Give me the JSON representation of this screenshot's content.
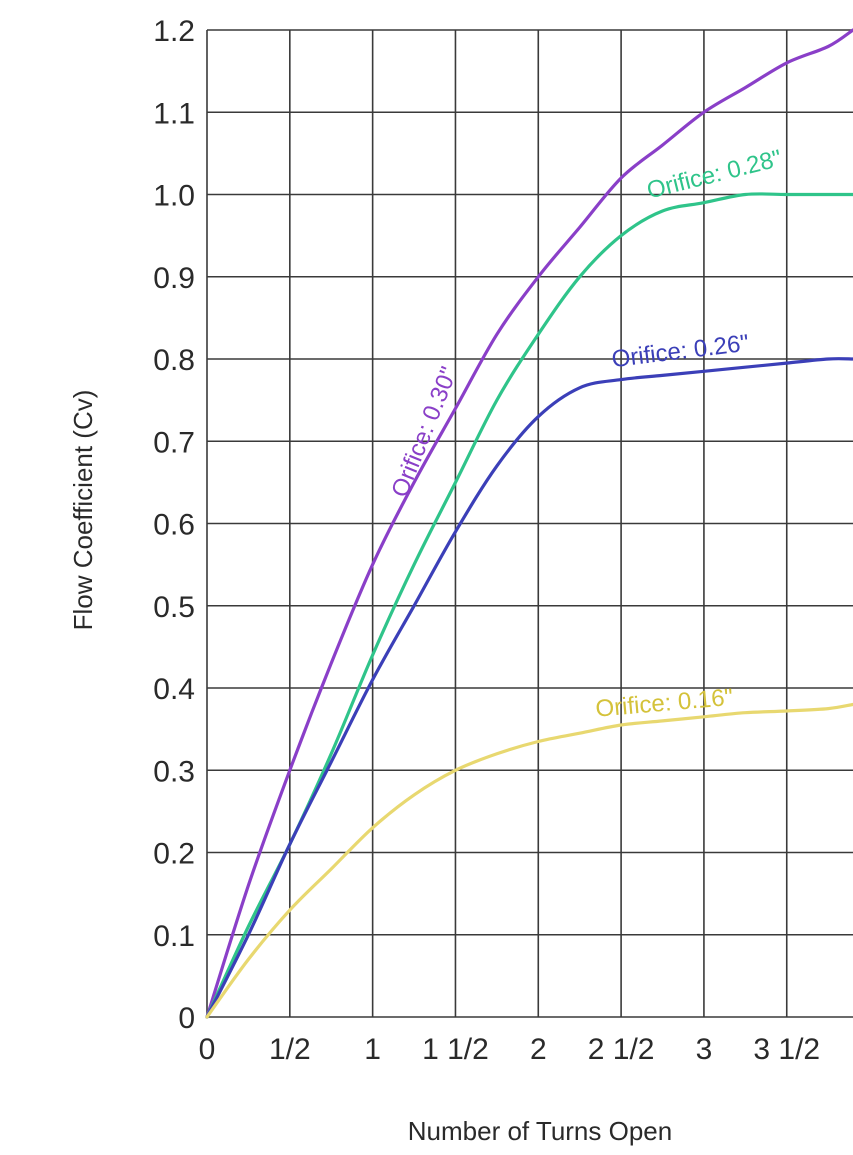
{
  "chart_data": {
    "type": "line",
    "title": "",
    "xlabel": "Number of Turns Open",
    "ylabel": "Flow Coefficient (Cv)",
    "xlim": [
      0,
      3.9
    ],
    "ylim": [
      0,
      1.2
    ],
    "grid": true,
    "legend": "none",
    "x_ticks": [
      {
        "value": 0,
        "label": "0"
      },
      {
        "value": 0.5,
        "label": "1/2"
      },
      {
        "value": 1,
        "label": "1"
      },
      {
        "value": 1.5,
        "label": "1 1/2"
      },
      {
        "value": 2,
        "label": "2"
      },
      {
        "value": 2.5,
        "label": "2 1/2"
      },
      {
        "value": 3,
        "label": "3"
      },
      {
        "value": 3.5,
        "label": "3 1/2"
      }
    ],
    "y_ticks": [
      {
        "value": 0,
        "label": "0"
      },
      {
        "value": 0.1,
        "label": "0.1"
      },
      {
        "value": 0.2,
        "label": "0.2"
      },
      {
        "value": 0.3,
        "label": "0.3"
      },
      {
        "value": 0.4,
        "label": "0.4"
      },
      {
        "value": 0.5,
        "label": "0.5"
      },
      {
        "value": 0.6,
        "label": "0.6"
      },
      {
        "value": 0.7,
        "label": "0.7"
      },
      {
        "value": 0.8,
        "label": "0.8"
      },
      {
        "value": 0.9,
        "label": "0.9"
      },
      {
        "value": 1.0,
        "label": "1.0"
      },
      {
        "value": 1.1,
        "label": "1.1"
      },
      {
        "value": 1.2,
        "label": "1.2"
      }
    ],
    "series": [
      {
        "name": "Orifice: 0.30\"",
        "color": "#8a3fc8",
        "x": [
          0,
          0.25,
          0.5,
          0.75,
          1.0,
          1.25,
          1.5,
          1.75,
          2.0,
          2.25,
          2.5,
          2.75,
          3.0,
          3.25,
          3.5,
          3.75,
          3.9
        ],
        "y": [
          0,
          0.16,
          0.3,
          0.43,
          0.55,
          0.65,
          0.74,
          0.83,
          0.9,
          0.96,
          1.02,
          1.06,
          1.1,
          1.13,
          1.16,
          1.18,
          1.2
        ],
        "label_anchor_x": 1.2,
        "label_anchor_y": 0.63
      },
      {
        "name": "Orifice: 0.28\"",
        "color": "#2fc48a",
        "x": [
          0,
          0.25,
          0.5,
          0.75,
          1.0,
          1.25,
          1.5,
          1.75,
          2.0,
          2.25,
          2.5,
          2.75,
          3.0,
          3.25,
          3.5,
          3.75,
          3.9
        ],
        "y": [
          0,
          0.11,
          0.21,
          0.32,
          0.44,
          0.55,
          0.65,
          0.75,
          0.83,
          0.9,
          0.95,
          0.98,
          0.99,
          1.0,
          1.0,
          1.0,
          1.0
        ],
        "label_anchor_x": 2.67,
        "label_anchor_y": 0.995
      },
      {
        "name": "Orifice: 0.26\"",
        "color": "#3b3fb8",
        "x": [
          0,
          0.25,
          0.5,
          0.75,
          1.0,
          1.25,
          1.5,
          1.75,
          2.0,
          2.25,
          2.5,
          2.75,
          3.0,
          3.25,
          3.5,
          3.75,
          3.9
        ],
        "y": [
          0,
          0.1,
          0.21,
          0.31,
          0.41,
          0.5,
          0.59,
          0.67,
          0.73,
          0.765,
          0.775,
          0.78,
          0.785,
          0.79,
          0.795,
          0.8,
          0.8
        ],
        "label_anchor_x": 2.45,
        "label_anchor_y": 0.79
      },
      {
        "name": "Orifice: 0.16\"",
        "color": "#e8d870",
        "label_color": "#d4c23a",
        "x": [
          0,
          0.25,
          0.5,
          0.75,
          1.0,
          1.25,
          1.5,
          1.75,
          2.0,
          2.25,
          2.5,
          2.75,
          3.0,
          3.25,
          3.5,
          3.75,
          3.9
        ],
        "y": [
          0,
          0.07,
          0.13,
          0.18,
          0.23,
          0.27,
          0.3,
          0.32,
          0.335,
          0.345,
          0.355,
          0.36,
          0.365,
          0.37,
          0.372,
          0.375,
          0.38
        ],
        "label_anchor_x": 2.35,
        "label_anchor_y": 0.365
      }
    ]
  }
}
